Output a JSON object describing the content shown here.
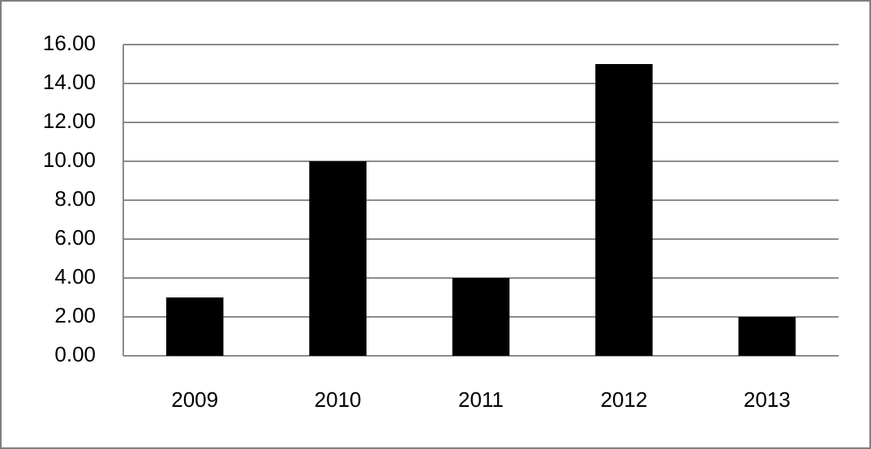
{
  "chart_data": {
    "type": "bar",
    "categories": [
      "2009",
      "2010",
      "2011",
      "2012",
      "2013"
    ],
    "values": [
      3,
      10,
      4,
      15,
      2
    ],
    "color": "#000000",
    "ylim": [
      0,
      16
    ],
    "yticks": [
      {
        "value": 0,
        "label": "0.00"
      },
      {
        "value": 2,
        "label": "2.00"
      },
      {
        "value": 4,
        "label": "4.00"
      },
      {
        "value": 6,
        "label": "6.00"
      },
      {
        "value": 8,
        "label": "8.00"
      },
      {
        "value": 10,
        "label": "10.00"
      },
      {
        "value": 12,
        "label": "12.00"
      },
      {
        "value": 14,
        "label": "14.00"
      },
      {
        "value": 16,
        "label": "16.00"
      }
    ],
    "grid": true
  }
}
